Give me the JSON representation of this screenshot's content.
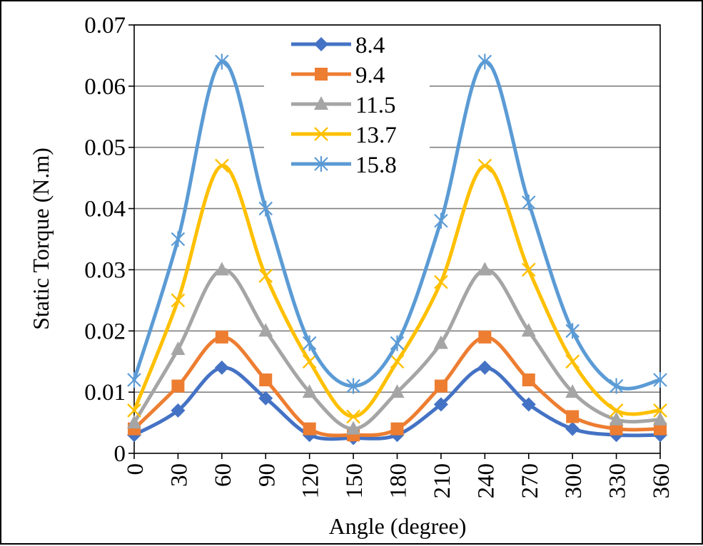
{
  "chart_data": {
    "type": "line",
    "title": "",
    "xlabel": "Angle (degree)",
    "ylabel": "Static Torque (N.m)",
    "x": [
      0,
      30,
      60,
      90,
      120,
      150,
      180,
      210,
      240,
      270,
      300,
      330,
      360
    ],
    "x_tick_labels": [
      "0",
      "30",
      "60",
      "90",
      "120",
      "150",
      "180",
      "210",
      "240",
      "270",
      "300",
      "330",
      "360"
    ],
    "y_tick_labels": [
      "0",
      "0.01",
      "0.02",
      "0.03",
      "0.04",
      "0.05",
      "0.06",
      "0.07"
    ],
    "xlim": [
      0,
      360
    ],
    "ylim": [
      0,
      0.07
    ],
    "y_grid": true,
    "smoothed": true,
    "legend_position": "top-center",
    "series": [
      {
        "name": "8.4",
        "color": "#4472C4",
        "marker": "diamond",
        "values": [
          0.003,
          0.007,
          0.014,
          0.009,
          0.003,
          0.0025,
          0.003,
          0.008,
          0.014,
          0.008,
          0.004,
          0.003,
          0.003
        ]
      },
      {
        "name": "9.4",
        "color": "#ED7D31",
        "marker": "square",
        "values": [
          0.004,
          0.011,
          0.019,
          0.012,
          0.004,
          0.003,
          0.004,
          0.011,
          0.019,
          0.012,
          0.006,
          0.004,
          0.004
        ]
      },
      {
        "name": "11.5",
        "color": "#A5A5A5",
        "marker": "triangle",
        "values": [
          0.005,
          0.017,
          0.03,
          0.02,
          0.01,
          0.004,
          0.01,
          0.018,
          0.03,
          0.02,
          0.01,
          0.0055,
          0.0055
        ]
      },
      {
        "name": "13.7",
        "color": "#FFC000",
        "marker": "x",
        "values": [
          0.007,
          0.025,
          0.047,
          0.029,
          0.015,
          0.006,
          0.015,
          0.028,
          0.047,
          0.03,
          0.015,
          0.007,
          0.007
        ]
      },
      {
        "name": "15.8",
        "color": "#5B9BD5",
        "marker": "star",
        "values": [
          0.012,
          0.035,
          0.064,
          0.04,
          0.018,
          0.011,
          0.018,
          0.038,
          0.064,
          0.041,
          0.02,
          0.011,
          0.012
        ]
      }
    ]
  }
}
